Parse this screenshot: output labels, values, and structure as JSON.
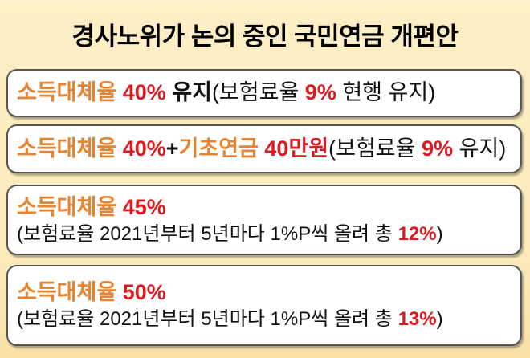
{
  "title": "경사노위가 논의 중인 국민연금 개편안",
  "palette": {
    "orange": "#e8832f",
    "red": "#dd1a21",
    "ink": "#111111",
    "box_border": "#555555",
    "box_bg": "#ffffff",
    "bg_top": "#fdefc7",
    "bg_bottom": "#f8e1a6"
  },
  "boxes": [
    {
      "lines": [
        [
          {
            "text": "소득대체율 ",
            "style": "orange"
          },
          {
            "text": "40% ",
            "style": "red"
          },
          {
            "text": "유지",
            "style": "bold"
          },
          {
            "text": "(보험료율 ",
            "style": "plain"
          },
          {
            "text": "9%",
            "style": "red"
          },
          {
            "text": " 현행 유지)",
            "style": "plain"
          }
        ]
      ]
    },
    {
      "lines": [
        [
          {
            "text": "소득대체율 ",
            "style": "orange"
          },
          {
            "text": "40%",
            "style": "red"
          },
          {
            "text": "+",
            "style": "bold"
          },
          {
            "text": "기초연금 ",
            "style": "orange"
          },
          {
            "text": "40만원",
            "style": "red"
          },
          {
            "text": "(보험료율 ",
            "style": "plain"
          },
          {
            "text": "9%",
            "style": "red"
          },
          {
            "text": " 유지)",
            "style": "plain"
          }
        ]
      ]
    },
    {
      "lines": [
        [
          {
            "text": "소득대체율 ",
            "style": "orange"
          },
          {
            "text": "45%",
            "style": "red"
          }
        ],
        [
          {
            "text": "(보험료율 2021년부터 5년마다 1%P씩 올려 총 ",
            "style": "plain"
          },
          {
            "text": "12%",
            "style": "red"
          },
          {
            "text": ")",
            "style": "plain"
          }
        ]
      ]
    },
    {
      "lines": [
        [
          {
            "text": "소득대체율 ",
            "style": "orange"
          },
          {
            "text": "50%",
            "style": "red"
          }
        ],
        [
          {
            "text": "(보험료율 2021년부터 5년마다 1%P씩 올려 총 ",
            "style": "plain"
          },
          {
            "text": "13%",
            "style": "red"
          },
          {
            "text": ")",
            "style": "plain"
          }
        ]
      ]
    }
  ]
}
